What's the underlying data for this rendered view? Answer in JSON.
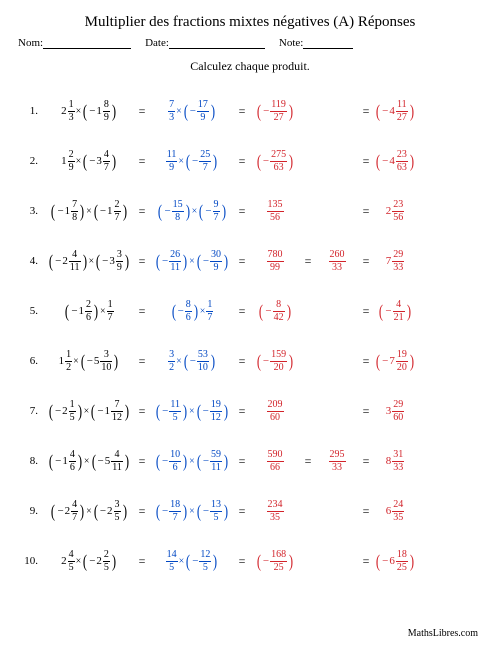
{
  "title": "Multiplier des fractions mixtes négatives (A) Réponses",
  "labels": {
    "nom": "Nom:",
    "date": "Date:",
    "note": "Note:"
  },
  "subtitle": "Calculez chaque produit.",
  "footer": "MathsLibres.com",
  "lineWidths": {
    "nom": 88,
    "date": 96,
    "note": 50
  },
  "problems": [
    {
      "n": "1.",
      "a": {
        "type": "mix",
        "sign": "",
        "w": "2",
        "num": "1",
        "den": "3",
        "paren": false
      },
      "b": {
        "type": "mix",
        "sign": "−",
        "w": "1",
        "num": "8",
        "den": "9",
        "paren": true
      },
      "sa": {
        "sign": "",
        "num": "7",
        "den": "3",
        "paren": false
      },
      "sb": {
        "sign": "−",
        "num": "17",
        "den": "9",
        "paren": true
      },
      "res": {
        "sign": "−",
        "num": "119",
        "den": "27",
        "paren": true
      },
      "simp": null,
      "final": {
        "sign": "−",
        "w": "4",
        "num": "11",
        "den": "27",
        "paren": true
      }
    },
    {
      "n": "2.",
      "a": {
        "type": "mix",
        "sign": "",
        "w": "1",
        "num": "2",
        "den": "9",
        "paren": false
      },
      "b": {
        "type": "mix",
        "sign": "−",
        "w": "3",
        "num": "4",
        "den": "7",
        "paren": true
      },
      "sa": {
        "sign": "",
        "num": "11",
        "den": "9",
        "paren": false
      },
      "sb": {
        "sign": "−",
        "num": "25",
        "den": "7",
        "paren": true
      },
      "res": {
        "sign": "−",
        "num": "275",
        "den": "63",
        "paren": true
      },
      "simp": null,
      "final": {
        "sign": "−",
        "w": "4",
        "num": "23",
        "den": "63",
        "paren": true
      }
    },
    {
      "n": "3.",
      "a": {
        "type": "mix",
        "sign": "−",
        "w": "1",
        "num": "7",
        "den": "8",
        "paren": true
      },
      "b": {
        "type": "mix",
        "sign": "−",
        "w": "1",
        "num": "2",
        "den": "7",
        "paren": true
      },
      "sa": {
        "sign": "−",
        "num": "15",
        "den": "8",
        "paren": true
      },
      "sb": {
        "sign": "−",
        "num": "9",
        "den": "7",
        "paren": true
      },
      "res": {
        "sign": "",
        "num": "135",
        "den": "56",
        "paren": false
      },
      "simp": null,
      "final": {
        "sign": "",
        "w": "2",
        "num": "23",
        "den": "56",
        "paren": false
      }
    },
    {
      "n": "4.",
      "a": {
        "type": "mix",
        "sign": "−",
        "w": "2",
        "num": "4",
        "den": "11",
        "paren": true
      },
      "b": {
        "type": "mix",
        "sign": "−",
        "w": "3",
        "num": "3",
        "den": "9",
        "paren": true
      },
      "sa": {
        "sign": "−",
        "num": "26",
        "den": "11",
        "paren": true
      },
      "sb": {
        "sign": "−",
        "num": "30",
        "den": "9",
        "paren": true
      },
      "res": {
        "sign": "",
        "num": "780",
        "den": "99",
        "paren": false
      },
      "simp": {
        "sign": "",
        "num": "260",
        "den": "33",
        "paren": false
      },
      "final": {
        "sign": "",
        "w": "7",
        "num": "29",
        "den": "33",
        "paren": false
      }
    },
    {
      "n": "5.",
      "a": {
        "type": "mix",
        "sign": "−",
        "w": "1",
        "num": "2",
        "den": "6",
        "paren": true
      },
      "b": {
        "type": "frac",
        "sign": "",
        "num": "1",
        "den": "7",
        "paren": false
      },
      "sa": {
        "sign": "−",
        "num": "8",
        "den": "6",
        "paren": true
      },
      "sb": {
        "sign": "",
        "num": "1",
        "den": "7",
        "paren": false
      },
      "res": {
        "sign": "−",
        "num": "8",
        "den": "42",
        "paren": true
      },
      "simp": null,
      "final": {
        "sign": "−",
        "num": "4",
        "den": "21",
        "paren": true,
        "type": "frac"
      }
    },
    {
      "n": "6.",
      "a": {
        "type": "mix",
        "sign": "",
        "w": "1",
        "num": "1",
        "den": "2",
        "paren": false
      },
      "b": {
        "type": "mix",
        "sign": "−",
        "w": "5",
        "num": "3",
        "den": "10",
        "paren": true
      },
      "sa": {
        "sign": "",
        "num": "3",
        "den": "2",
        "paren": false
      },
      "sb": {
        "sign": "−",
        "num": "53",
        "den": "10",
        "paren": true
      },
      "res": {
        "sign": "−",
        "num": "159",
        "den": "20",
        "paren": true
      },
      "simp": null,
      "final": {
        "sign": "−",
        "w": "7",
        "num": "19",
        "den": "20",
        "paren": true
      }
    },
    {
      "n": "7.",
      "a": {
        "type": "mix",
        "sign": "−",
        "w": "2",
        "num": "1",
        "den": "5",
        "paren": true
      },
      "b": {
        "type": "mix",
        "sign": "−",
        "w": "1",
        "num": "7",
        "den": "12",
        "paren": true
      },
      "sa": {
        "sign": "−",
        "num": "11",
        "den": "5",
        "paren": true
      },
      "sb": {
        "sign": "−",
        "num": "19",
        "den": "12",
        "paren": true
      },
      "res": {
        "sign": "",
        "num": "209",
        "den": "60",
        "paren": false
      },
      "simp": null,
      "final": {
        "sign": "",
        "w": "3",
        "num": "29",
        "den": "60",
        "paren": false
      }
    },
    {
      "n": "8.",
      "a": {
        "type": "mix",
        "sign": "−",
        "w": "1",
        "num": "4",
        "den": "6",
        "paren": true
      },
      "b": {
        "type": "mix",
        "sign": "−",
        "w": "5",
        "num": "4",
        "den": "11",
        "paren": true
      },
      "sa": {
        "sign": "−",
        "num": "10",
        "den": "6",
        "paren": true
      },
      "sb": {
        "sign": "−",
        "num": "59",
        "den": "11",
        "paren": true
      },
      "res": {
        "sign": "",
        "num": "590",
        "den": "66",
        "paren": false
      },
      "simp": {
        "sign": "",
        "num": "295",
        "den": "33",
        "paren": false
      },
      "final": {
        "sign": "",
        "w": "8",
        "num": "31",
        "den": "33",
        "paren": false
      }
    },
    {
      "n": "9.",
      "a": {
        "type": "mix",
        "sign": "−",
        "w": "2",
        "num": "4",
        "den": "7",
        "paren": true
      },
      "b": {
        "type": "mix",
        "sign": "−",
        "w": "2",
        "num": "3",
        "den": "5",
        "paren": true
      },
      "sa": {
        "sign": "−",
        "num": "18",
        "den": "7",
        "paren": true
      },
      "sb": {
        "sign": "−",
        "num": "13",
        "den": "5",
        "paren": true
      },
      "res": {
        "sign": "",
        "num": "234",
        "den": "35",
        "paren": false
      },
      "simp": null,
      "final": {
        "sign": "",
        "w": "6",
        "num": "24",
        "den": "35",
        "paren": false
      }
    },
    {
      "n": "10.",
      "a": {
        "type": "mix",
        "sign": "",
        "w": "2",
        "num": "4",
        "den": "5",
        "paren": false
      },
      "b": {
        "type": "mix",
        "sign": "−",
        "w": "2",
        "num": "2",
        "den": "5",
        "paren": true
      },
      "sa": {
        "sign": "",
        "num": "14",
        "den": "5",
        "paren": false
      },
      "sb": {
        "sign": "−",
        "num": "12",
        "den": "5",
        "paren": true
      },
      "res": {
        "sign": "−",
        "num": "168",
        "den": "25",
        "paren": true
      },
      "simp": null,
      "final": {
        "sign": "−",
        "w": "6",
        "num": "18",
        "den": "25",
        "paren": true
      }
    }
  ]
}
